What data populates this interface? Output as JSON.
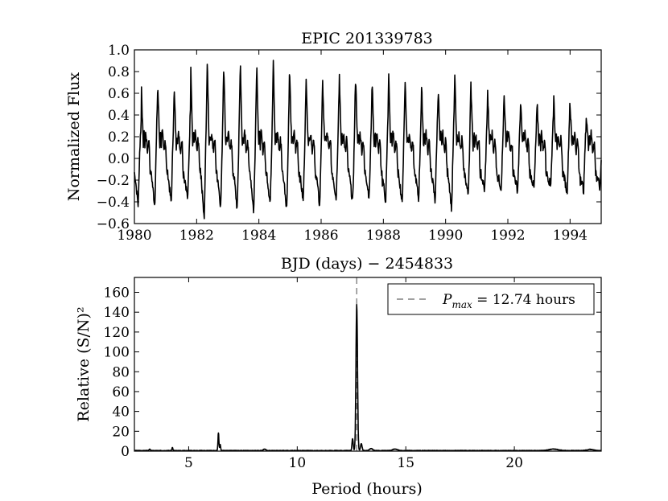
{
  "chart_data": [
    {
      "type": "line",
      "title": "EPIC 201339783",
      "xlabel": "BJD (days) − 2454833",
      "ylabel": "Normalized Flux",
      "xlim": [
        1980,
        1995
      ],
      "ylim": [
        -0.6,
        1.0
      ],
      "xticks": [
        1980,
        1982,
        1984,
        1986,
        1988,
        1990,
        1992,
        1994
      ],
      "yticks": [
        -0.6,
        -0.4,
        -0.2,
        0.0,
        0.2,
        0.4,
        0.6,
        0.8,
        1.0
      ],
      "ytick_labels": [
        "−0.6",
        "−0.4",
        "−0.2",
        "0.0",
        "0.2",
        "0.4",
        "0.6",
        "0.8",
        "1.0"
      ],
      "grid": false,
      "series": [
        {
          "color": "#000000",
          "peaks_t": [
            1980.22,
            1980.75,
            1981.28,
            1981.81,
            1982.34,
            1982.87,
            1983.4,
            1983.93,
            1984.46,
            1984.99,
            1985.52,
            1986.05,
            1986.58,
            1987.11,
            1987.64,
            1988.17,
            1988.7,
            1989.23,
            1989.76,
            1990.29,
            1990.82,
            1991.35,
            1991.88,
            1992.41,
            1992.94,
            1993.47,
            1994.0,
            1994.53
          ],
          "peaks_y": [
            0.74,
            0.68,
            0.63,
            0.9,
            0.94,
            0.9,
            0.93,
            0.9,
            0.99,
            0.78,
            0.77,
            0.72,
            0.87,
            0.75,
            0.73,
            0.8,
            0.7,
            0.66,
            0.68,
            0.86,
            0.62,
            0.62,
            0.56,
            0.52,
            0.51,
            0.64,
            0.49,
            0.35
          ],
          "troughs_y": [
            -0.44,
            -0.42,
            -0.38,
            -0.58,
            -0.45,
            -0.48,
            -0.5,
            -0.42,
            -0.47,
            -0.4,
            -0.45,
            -0.38,
            -0.42,
            -0.36,
            -0.4,
            -0.42,
            -0.38,
            -0.4,
            -0.47,
            -0.34,
            -0.3,
            -0.28,
            -0.3,
            -0.28,
            -0.25,
            -0.32,
            -0.3,
            -0.28
          ]
        }
      ]
    },
    {
      "type": "line",
      "title": "",
      "xlabel": "Period (hours)",
      "ylabel": "Relative (S/N)²",
      "xlim": [
        2.5,
        24
      ],
      "ylim": [
        0,
        175
      ],
      "xticks": [
        5,
        10,
        15,
        20
      ],
      "yticks": [
        0,
        20,
        40,
        60,
        80,
        100,
        120,
        140,
        160
      ],
      "grid": false,
      "legend": {
        "position": "top-right",
        "entries": [
          {
            "label": "P_max = 12.74 hours",
            "symbol": "P",
            "subscript": "max",
            "text": " = 12.74 hours",
            "style": "dashed",
            "color": "#808080"
          }
        ]
      },
      "vline": {
        "x": 12.74,
        "style": "dashed",
        "color": "#808080"
      },
      "series": [
        {
          "color": "#000000",
          "peaks": [
            {
              "x": 12.74,
              "y": 147,
              "width": 0.05
            },
            {
              "x": 12.55,
              "y": 12,
              "width": 0.04
            },
            {
              "x": 12.95,
              "y": 7,
              "width": 0.05
            },
            {
              "x": 6.37,
              "y": 18,
              "width": 0.03
            },
            {
              "x": 6.45,
              "y": 6,
              "width": 0.03
            },
            {
              "x": 4.25,
              "y": 3,
              "width": 0.03
            },
            {
              "x": 3.2,
              "y": 1.5,
              "width": 0.04
            },
            {
              "x": 8.5,
              "y": 1.5,
              "width": 0.08
            },
            {
              "x": 13.4,
              "y": 2,
              "width": 0.1
            },
            {
              "x": 14.5,
              "y": 1.5,
              "width": 0.15
            },
            {
              "x": 21.8,
              "y": 1.5,
              "width": 0.3
            },
            {
              "x": 23.5,
              "y": 1.2,
              "width": 0.2
            }
          ]
        }
      ]
    }
  ]
}
